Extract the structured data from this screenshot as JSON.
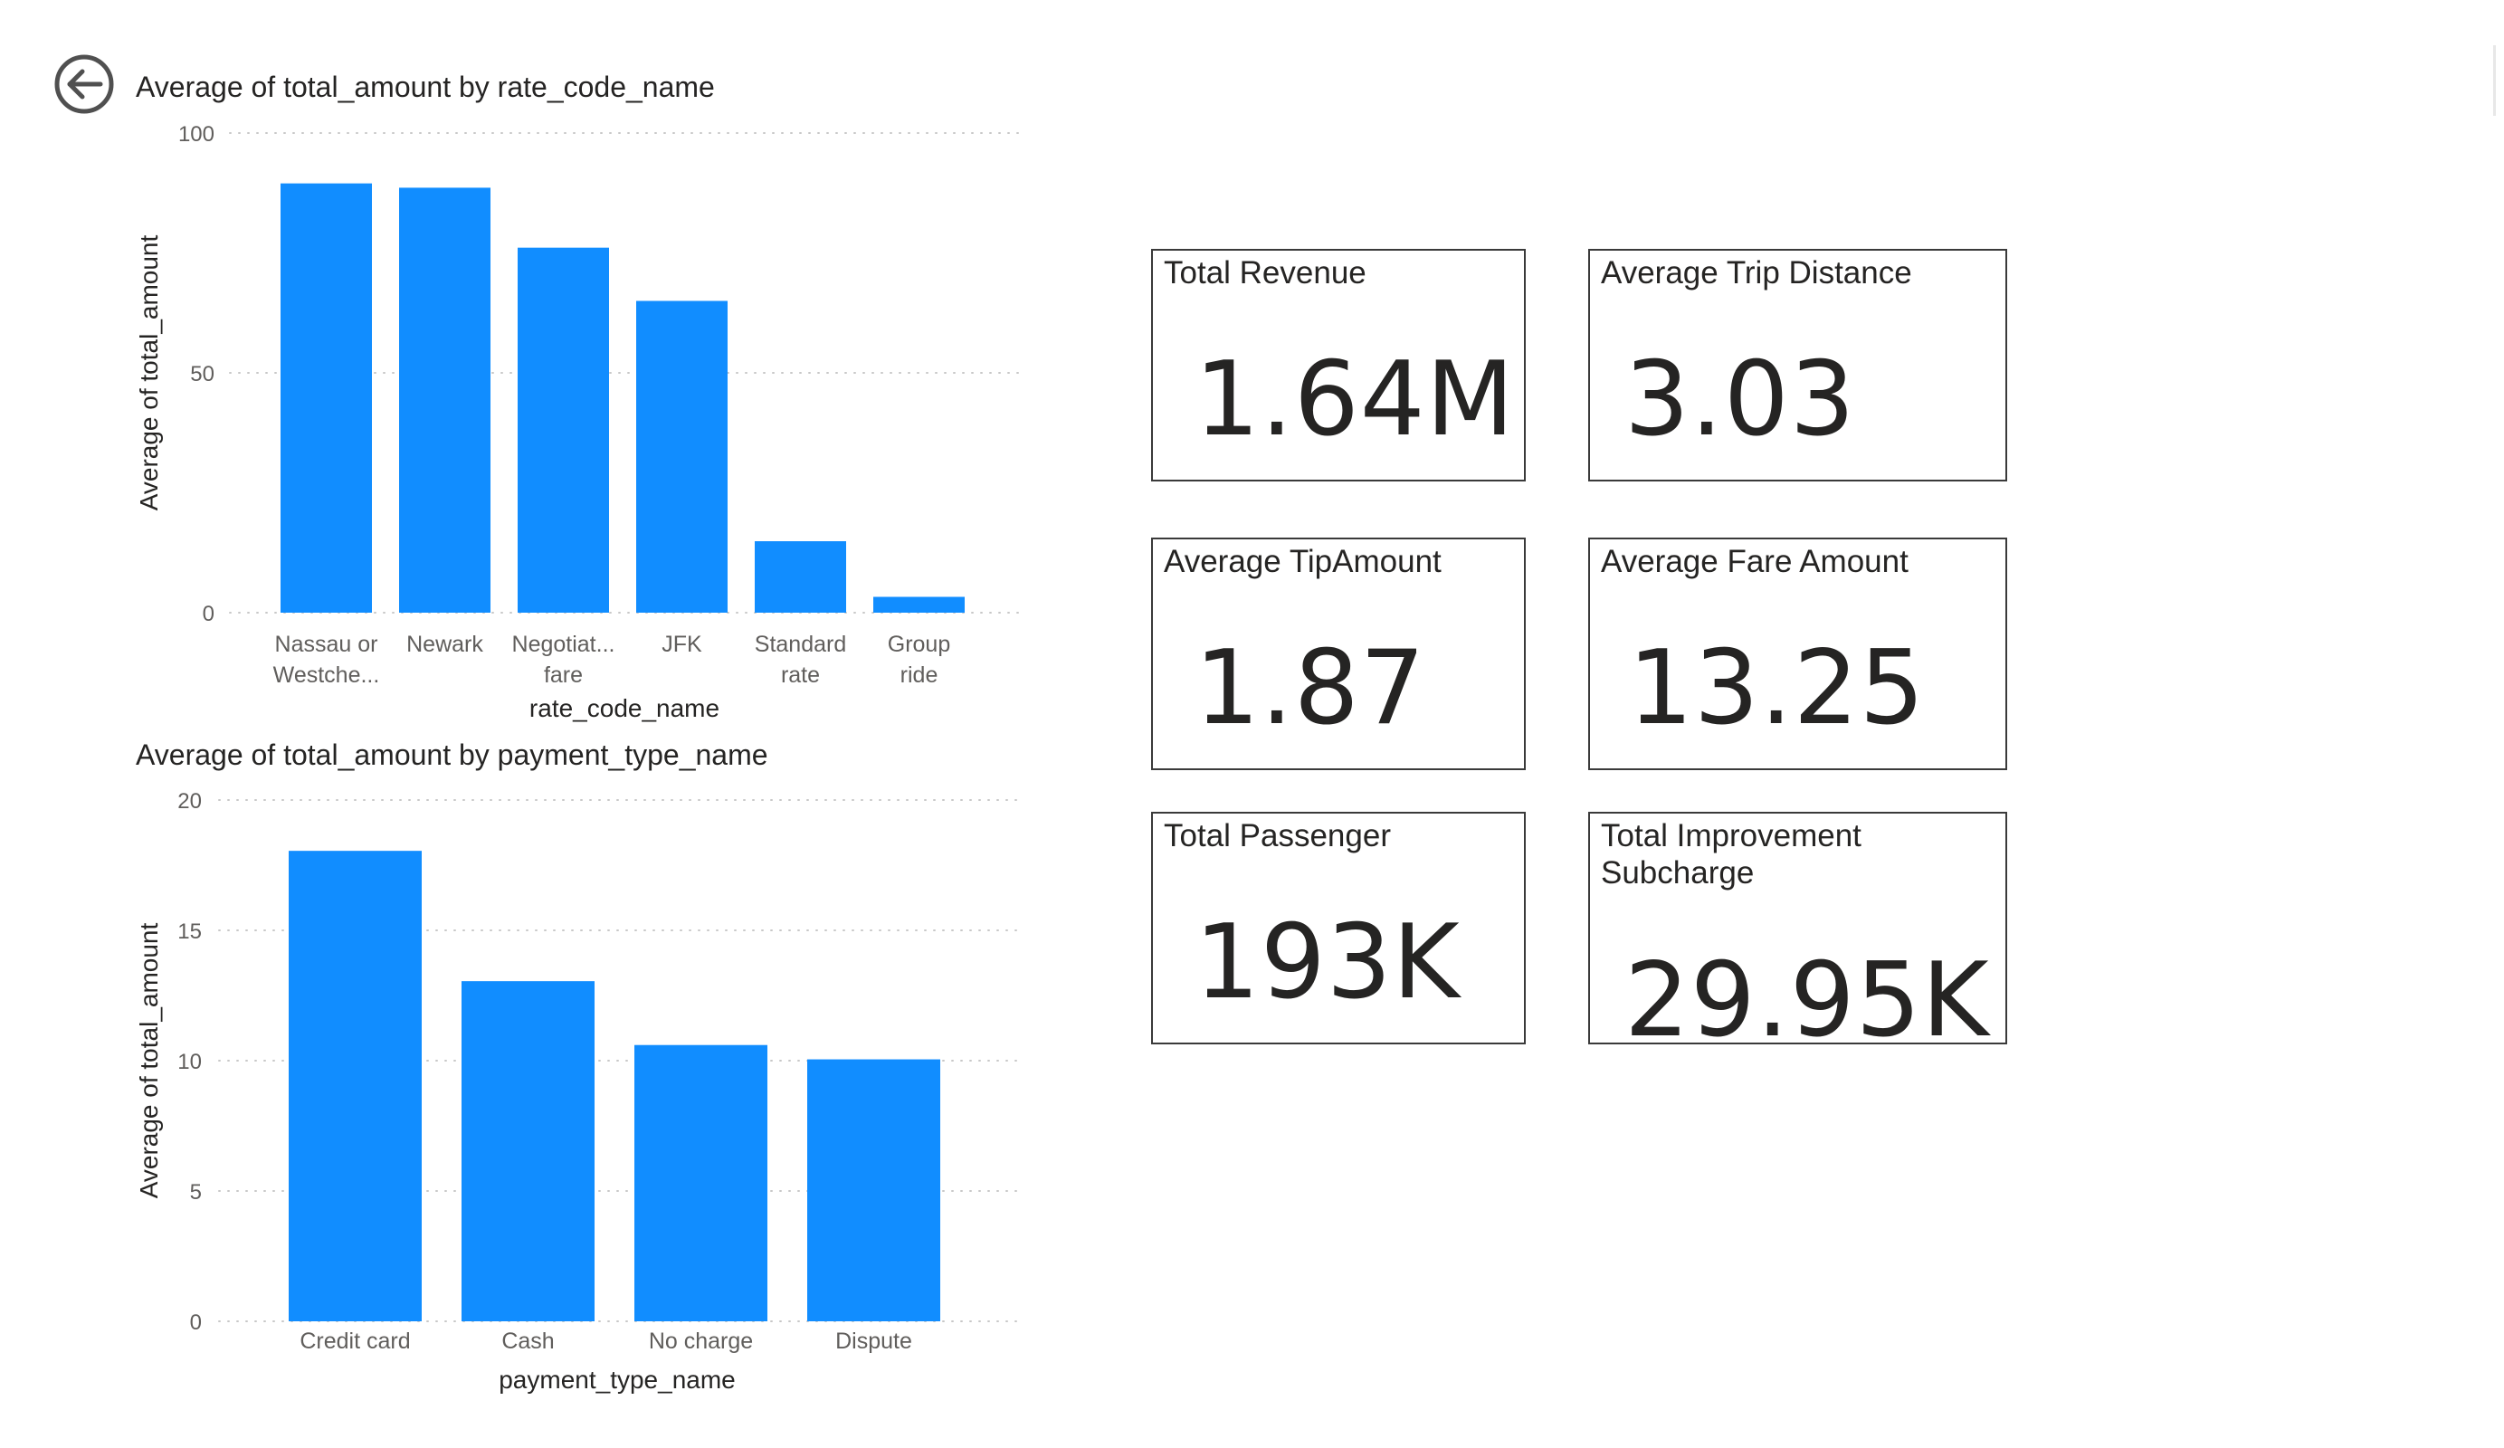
{
  "page": {
    "back_icon": "back-arrow-circle-icon",
    "accent_color": "#118DFF"
  },
  "charts": {
    "rate_code": {
      "title": "Average of total_amount by rate_code_name",
      "xlabel": "rate_code_name",
      "ylabel": "Average of total_amount"
    },
    "payment_type": {
      "title": "Average of total_amount by payment_type_name",
      "xlabel": "payment_type_name",
      "ylabel": "Average of total_amount"
    }
  },
  "chart_data": [
    {
      "type": "bar",
      "title": "Average of total_amount by rate_code_name",
      "xlabel": "rate_code_name",
      "ylabel": "Average of total_amount",
      "categories": [
        [
          "Nassau or",
          "Westche..."
        ],
        [
          "Newark"
        ],
        [
          "Negotiat...",
          "fare"
        ],
        [
          "JFK"
        ],
        [
          "Standard",
          "rate"
        ],
        [
          "Group",
          "ride"
        ]
      ],
      "values": [
        89.5,
        88.6,
        76.1,
        65,
        14.9,
        3.3
      ],
      "ylim": [
        0,
        100
      ],
      "yticks": [
        "0",
        "50",
        "100"
      ],
      "grid": true,
      "color": "#118DFF"
    },
    {
      "type": "bar",
      "title": "Average of total_amount by payment_type_name",
      "xlabel": "payment_type_name",
      "ylabel": "Average of total_amount",
      "categories": [
        [
          "Credit card"
        ],
        [
          "Cash"
        ],
        [
          "No charge"
        ],
        [
          "Dispute"
        ]
      ],
      "values": [
        18.05,
        13.05,
        10.6,
        10.05
      ],
      "ylim": [
        0,
        20
      ],
      "yticks": [
        "0",
        "5",
        "10",
        "15",
        "20"
      ],
      "grid": true,
      "color": "#118DFF"
    }
  ],
  "kpis": [
    {
      "label": "Total Revenue",
      "value": "1.64M"
    },
    {
      "label": "Average Trip Distance",
      "value": "3.03"
    },
    {
      "label": "Average TipAmount",
      "value": "1.87"
    },
    {
      "label": "Average Fare Amount",
      "value": "13.25"
    },
    {
      "label": "Total Passenger",
      "value": "193K"
    },
    {
      "label": "Total Improvement Subcharge",
      "value": "29.95K"
    }
  ]
}
